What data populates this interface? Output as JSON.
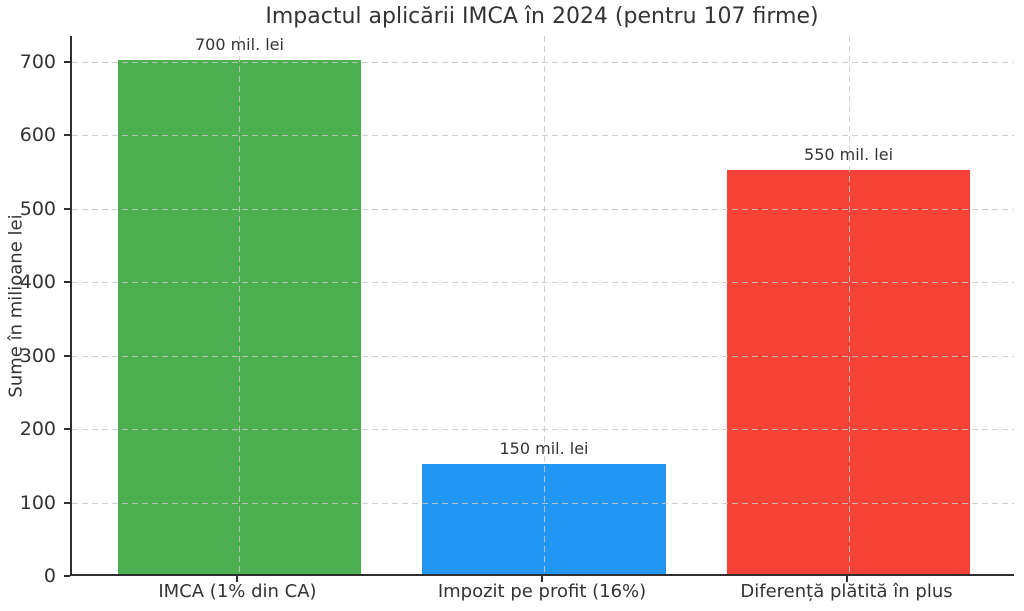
{
  "chart_data": {
    "type": "bar",
    "title": "Impactul aplicării IMCA în 2024 (pentru 107 firme)",
    "categories": [
      "IMCA (1% din CA)",
      "Impozit pe profit (16%)",
      "Diferență plătită în plus"
    ],
    "values": [
      700,
      150,
      550
    ],
    "value_labels": [
      "700 mil. lei",
      "150 mil. lei",
      "550 mil. lei"
    ],
    "bar_colors": [
      "#4caf50",
      "#2196f3",
      "#f44336"
    ],
    "xlabel": "",
    "ylabel": "Sume în milioane lei",
    "ylim": [
      0,
      735
    ],
    "yticks": [
      0,
      100,
      200,
      300,
      400,
      500,
      600,
      700
    ],
    "grid": {
      "style": "dashed",
      "axes": "both",
      "color": "#cccccc",
      "drawn_over_bars": true
    },
    "legend": "none",
    "background": "#ffffff",
    "text_color": "#333333",
    "spine_color": "#2f2f2f"
  }
}
